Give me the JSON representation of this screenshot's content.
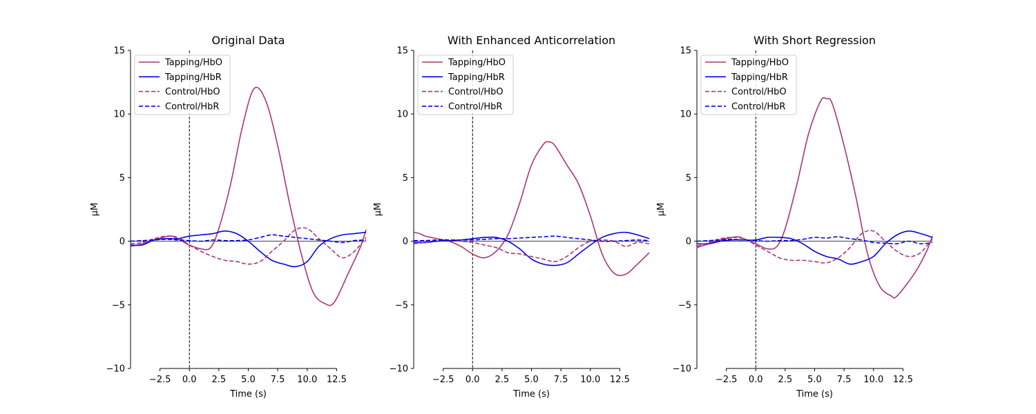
{
  "figure": {
    "background": "#ffffff"
  },
  "colors": {
    "hbo": "#aa3377",
    "hbr": "#0000ee",
    "zero_line": "#000000",
    "onset_line": "#000000"
  },
  "legend": {
    "placement": "top-left",
    "entries": [
      {
        "label": "Tapping/HbO",
        "color": "#aa3377",
        "style": "solid"
      },
      {
        "label": "Tapping/HbR",
        "color": "#0000ee",
        "style": "solid"
      },
      {
        "label": "Control/HbO",
        "color": "#aa3377",
        "style": "dashed"
      },
      {
        "label": "Control/HbR",
        "color": "#0000ee",
        "style": "dashed"
      }
    ]
  },
  "chart_data": [
    {
      "type": "line",
      "title": "Original Data",
      "xlabel": "Time (s)",
      "ylabel": "µM",
      "xlim": [
        -5,
        15
      ],
      "ylim": [
        -10,
        15
      ],
      "xticks": [
        -2.5,
        0.0,
        2.5,
        5.0,
        7.5,
        10.0,
        12.5
      ],
      "xtick_labels": [
        "−2.5",
        "0.0",
        "2.5",
        "5.0",
        "7.5",
        "10.0",
        "12.5"
      ],
      "yticks": [
        -10,
        -5,
        0,
        5,
        10,
        15
      ],
      "ytick_labels": [
        "−10",
        "−5",
        "0",
        "5",
        "10",
        "15"
      ],
      "grid": false,
      "legend": "top-left",
      "series": [
        {
          "name": "Tapping/HbO",
          "color": "#aa3377",
          "style": "solid",
          "x": [
            -5,
            -4,
            -3,
            -2,
            -1.5,
            -1,
            0,
            1,
            1.8,
            2.5,
            3.5,
            4.5,
            5.5,
            6.5,
            7.5,
            8.5,
            9.5,
            10.5,
            11.5,
            12.3,
            13.5,
            14.5,
            15
          ],
          "y": [
            -0.4,
            -0.2,
            0.1,
            0.35,
            0.4,
            0.2,
            -0.3,
            -0.6,
            -0.5,
            1.0,
            4.5,
            9.0,
            12.0,
            11.0,
            7.5,
            3.0,
            -1.0,
            -4.0,
            -4.9,
            -4.8,
            -2.5,
            -0.5,
            0.9
          ]
        },
        {
          "name": "Tapping/HbR",
          "color": "#0000ee",
          "style": "solid",
          "x": [
            -5,
            -4,
            -3,
            -2,
            -1,
            0,
            1,
            2,
            3,
            4,
            5,
            6,
            7,
            8,
            9,
            10,
            11,
            12,
            13,
            14,
            15
          ],
          "y": [
            -0.3,
            -0.3,
            0.1,
            0.2,
            0.2,
            0.4,
            0.5,
            0.6,
            0.8,
            0.6,
            0.0,
            -0.8,
            -1.5,
            -1.8,
            -2.0,
            -1.6,
            -0.4,
            0.2,
            0.5,
            0.6,
            0.7
          ]
        },
        {
          "name": "Control/HbO",
          "color": "#aa3377",
          "style": "dashed",
          "x": [
            -5,
            -4,
            -3,
            -2,
            -1,
            0,
            1,
            2,
            3,
            4,
            5,
            6,
            7,
            8,
            9,
            10,
            11,
            12,
            13,
            14,
            15
          ],
          "y": [
            -0.2,
            -0.1,
            0.2,
            0.4,
            0.3,
            -0.3,
            -0.8,
            -1.2,
            -1.5,
            -1.6,
            -1.8,
            -1.6,
            -0.8,
            0.0,
            0.9,
            1.0,
            0.2,
            -0.6,
            -1.3,
            -0.8,
            0.3
          ]
        },
        {
          "name": "Control/HbR",
          "color": "#0000ee",
          "style": "dashed",
          "x": [
            -5,
            -4,
            -3,
            -2,
            -1,
            0,
            1,
            2,
            3,
            4,
            5,
            6,
            7,
            8,
            9,
            10,
            11,
            12,
            13,
            14,
            15
          ],
          "y": [
            0.0,
            0.05,
            0.1,
            0.15,
            0.1,
            0.05,
            0.0,
            0.1,
            0.05,
            0.05,
            0.1,
            0.3,
            0.5,
            0.4,
            0.3,
            0.2,
            0.1,
            0.0,
            -0.1,
            0.05,
            0.1
          ]
        }
      ]
    },
    {
      "type": "line",
      "title": "With Enhanced Anticorrelation",
      "xlabel": "Time (s)",
      "ylabel": "µM",
      "xlim": [
        -5,
        15
      ],
      "ylim": [
        -10,
        15
      ],
      "xticks": [
        -2.5,
        0.0,
        2.5,
        5.0,
        7.5,
        10.0,
        12.5
      ],
      "xtick_labels": [
        "−2.5",
        "0.0",
        "2.5",
        "5.0",
        "7.5",
        "10.0",
        "12.5"
      ],
      "yticks": [
        -10,
        -5,
        0,
        5,
        10,
        15
      ],
      "ytick_labels": [
        "−10",
        "−5",
        "0",
        "5",
        "10",
        "15"
      ],
      "grid": false,
      "legend": "top-left",
      "series": [
        {
          "name": "Tapping/HbO",
          "color": "#aa3377",
          "style": "solid",
          "x": [
            -5,
            -4.5,
            -4,
            -3,
            -2,
            -1,
            0,
            1,
            2,
            3,
            4,
            5,
            6,
            6.5,
            7,
            8,
            9,
            10,
            11,
            12,
            13,
            14,
            15
          ],
          "y": [
            0.7,
            0.6,
            0.4,
            0.2,
            0.0,
            -0.4,
            -1.0,
            -1.3,
            -0.8,
            0.5,
            3.0,
            6.0,
            7.6,
            7.8,
            7.5,
            6.0,
            4.5,
            2.0,
            -1.0,
            -2.5,
            -2.6,
            -1.8,
            -0.9
          ]
        },
        {
          "name": "Tapping/HbR",
          "color": "#0000ee",
          "style": "solid",
          "x": [
            -5,
            -4,
            -3,
            -2,
            -1,
            0,
            1,
            2,
            3,
            4,
            5,
            6,
            7,
            8,
            9,
            10,
            11,
            12,
            13,
            14,
            15
          ],
          "y": [
            -0.1,
            -0.1,
            0.0,
            0.05,
            0.1,
            0.2,
            0.3,
            0.3,
            0.0,
            -0.6,
            -1.4,
            -1.8,
            -1.9,
            -1.7,
            -1.0,
            -0.3,
            0.3,
            0.6,
            0.7,
            0.5,
            0.2
          ]
        },
        {
          "name": "Control/HbO",
          "color": "#aa3377",
          "style": "dashed",
          "x": [
            -5,
            -4,
            -3,
            -2,
            -1,
            0,
            1,
            2,
            3,
            4,
            5,
            6,
            7,
            8,
            9,
            10,
            11,
            12,
            13,
            14,
            15
          ],
          "y": [
            -0.2,
            -0.1,
            0.1,
            0.1,
            0.0,
            -0.1,
            -0.3,
            -0.5,
            -0.9,
            -1.0,
            -1.2,
            -1.4,
            -1.6,
            -1.2,
            -0.5,
            0.0,
            0.1,
            0.0,
            -0.4,
            -0.1,
            -0.2
          ]
        },
        {
          "name": "Control/HbR",
          "color": "#0000ee",
          "style": "dashed",
          "x": [
            -5,
            -4,
            -3,
            -2,
            -1,
            0,
            1,
            2,
            3,
            4,
            5,
            6,
            7,
            8,
            9,
            10,
            11,
            12,
            13,
            14,
            15
          ],
          "y": [
            0.05,
            0.05,
            0.1,
            0.1,
            0.1,
            0.1,
            0.15,
            0.2,
            0.2,
            0.25,
            0.3,
            0.35,
            0.4,
            0.3,
            0.2,
            0.1,
            0.0,
            0.0,
            0.05,
            0.1,
            0.05
          ]
        }
      ]
    },
    {
      "type": "line",
      "title": "With Short Regression",
      "xlabel": "Time (s)",
      "ylabel": "µM",
      "xlim": [
        -5,
        15
      ],
      "ylim": [
        -10,
        15
      ],
      "xticks": [
        -2.5,
        0.0,
        2.5,
        5.0,
        7.5,
        10.0,
        12.5
      ],
      "xtick_labels": [
        "−2.5",
        "0.0",
        "2.5",
        "5.0",
        "7.5",
        "10.0",
        "12.5"
      ],
      "yticks": [
        -10,
        -5,
        0,
        5,
        10,
        15
      ],
      "ytick_labels": [
        "−10",
        "−5",
        "0",
        "5",
        "10",
        "15"
      ],
      "grid": false,
      "legend": "top-left",
      "series": [
        {
          "name": "Tapping/HbO",
          "color": "#aa3377",
          "style": "solid",
          "x": [
            -5,
            -4,
            -3,
            -2,
            -1.5,
            -1,
            0,
            1,
            1.8,
            2.5,
            3.5,
            4.5,
            5.5,
            6.0,
            6.5,
            7.5,
            8.5,
            9.5,
            10.5,
            11.5,
            12.0,
            13.5,
            14.5,
            15
          ],
          "y": [
            -0.5,
            -0.2,
            0.1,
            0.3,
            0.35,
            0.2,
            -0.2,
            -0.6,
            -0.4,
            1.0,
            4.5,
            8.5,
            11.0,
            11.2,
            10.8,
            7.5,
            3.5,
            -1.0,
            -3.5,
            -4.3,
            -4.3,
            -2.5,
            -0.8,
            0.4
          ]
        },
        {
          "name": "Tapping/HbR",
          "color": "#0000ee",
          "style": "solid",
          "x": [
            -5,
            -4,
            -3,
            -2,
            -1,
            0,
            1,
            2,
            3,
            4,
            5,
            6,
            7,
            8,
            9,
            10,
            11,
            12,
            13,
            14,
            15
          ],
          "y": [
            -0.2,
            -0.2,
            0.0,
            0.1,
            0.1,
            0.1,
            0.3,
            0.3,
            0.2,
            -0.2,
            -0.8,
            -1.2,
            -1.4,
            -1.8,
            -1.6,
            -1.2,
            -0.2,
            0.5,
            0.8,
            0.6,
            0.3
          ]
        },
        {
          "name": "Control/HbO",
          "color": "#aa3377",
          "style": "dashed",
          "x": [
            -5,
            -4,
            -3,
            -2,
            -1,
            0,
            1,
            2,
            3,
            4,
            5,
            6,
            7,
            8,
            9,
            10,
            11,
            12,
            13,
            14,
            15
          ],
          "y": [
            -0.4,
            -0.1,
            0.2,
            0.3,
            0.2,
            -0.3,
            -0.8,
            -1.3,
            -1.5,
            -1.5,
            -1.6,
            -1.7,
            -1.3,
            -0.5,
            0.6,
            0.8,
            0.0,
            -0.8,
            -1.2,
            -0.9,
            0.2
          ]
        },
        {
          "name": "Control/HbR",
          "color": "#0000ee",
          "style": "dashed",
          "x": [
            -5,
            -4,
            -3,
            -2,
            -1,
            0,
            1,
            2,
            3,
            4,
            5,
            6,
            7,
            8,
            9,
            10,
            11,
            12,
            13,
            14,
            15
          ],
          "y": [
            0.0,
            0.05,
            0.1,
            0.15,
            0.1,
            0.05,
            0.0,
            0.05,
            0.05,
            0.15,
            0.3,
            0.25,
            0.35,
            0.2,
            0.1,
            -0.1,
            -0.15,
            -0.2,
            0.0,
            -0.2,
            -0.1
          ]
        }
      ]
    }
  ]
}
